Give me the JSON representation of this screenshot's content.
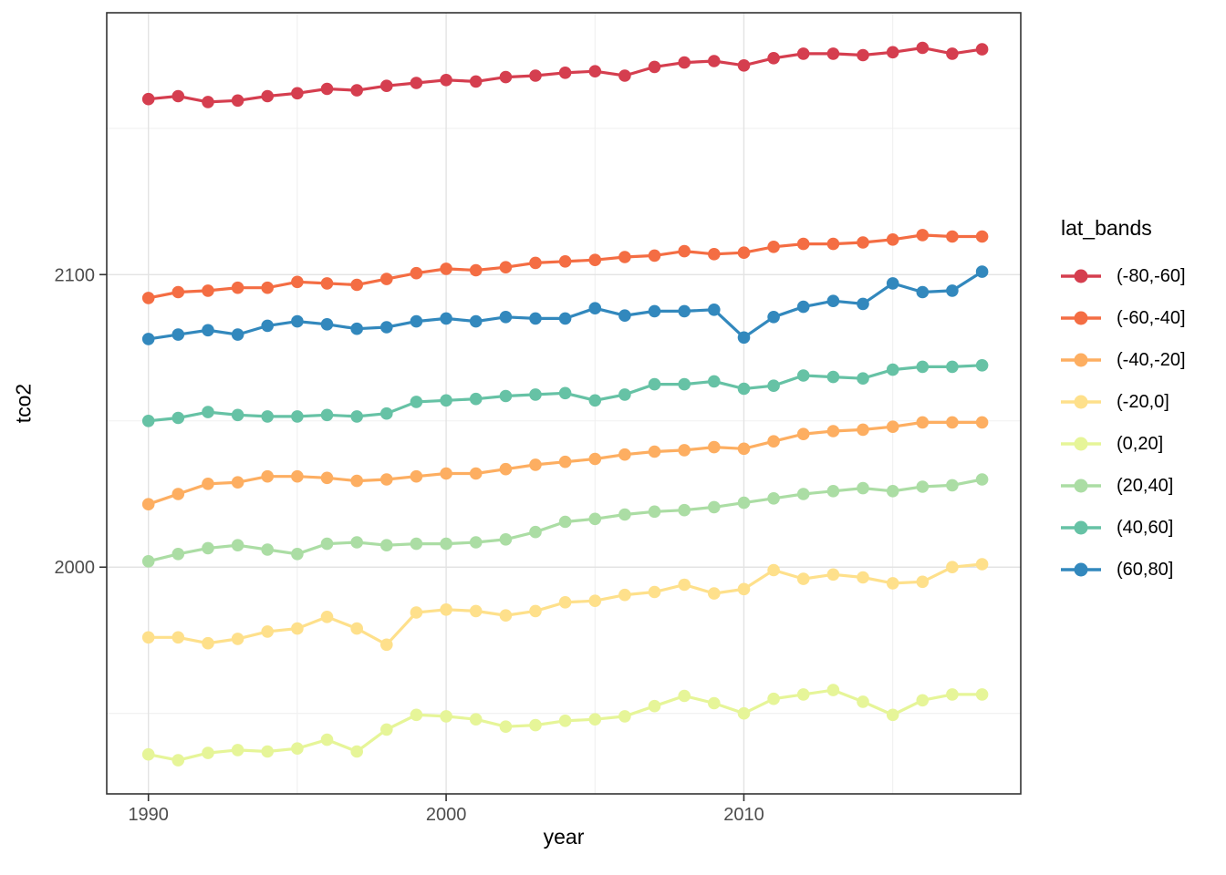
{
  "chart_data": {
    "type": "line",
    "title": "",
    "xlabel": "year",
    "ylabel": "tco2",
    "legend_title": "lat_bands",
    "legend_position": "right",
    "grid": true,
    "xlim": [
      1988.6,
      2019.3
    ],
    "ylim": [
      1922.5,
      2189.5
    ],
    "x_ticks": [
      1990,
      2000,
      2010
    ],
    "x_minor_ticks": [
      1995,
      2005,
      2015
    ],
    "y_ticks": [
      2000,
      2100
    ],
    "y_minor_ticks": [
      1950,
      2050,
      2150
    ],
    "x": [
      1990,
      1991,
      1992,
      1993,
      1994,
      1995,
      1996,
      1997,
      1998,
      1999,
      2000,
      2001,
      2002,
      2003,
      2004,
      2005,
      2006,
      2007,
      2008,
      2009,
      2010,
      2011,
      2012,
      2013,
      2014,
      2015,
      2016,
      2017,
      2018
    ],
    "series": [
      {
        "name": "(-80,-60]",
        "color": "#d53e4f",
        "values": [
          2160,
          2161,
          2159,
          2159.5,
          2161,
          2162,
          2163.5,
          2163,
          2164.5,
          2165.5,
          2166.5,
          2166,
          2167.5,
          2168,
          2169,
          2169.5,
          2168,
          2171,
          2172.5,
          2173,
          2171.5,
          2174,
          2175.5,
          2175.5,
          2175,
          2176,
          2177.5,
          2175.5,
          2177
        ]
      },
      {
        "name": "(-60,-40]",
        "color": "#f46d43",
        "values": [
          2092,
          2094,
          2094.5,
          2095.5,
          2095.5,
          2097.5,
          2097,
          2096.5,
          2098.5,
          2100.5,
          2102,
          2101.5,
          2102.5,
          2104,
          2104.5,
          2105,
          2106,
          2106.5,
          2108,
          2107,
          2107.5,
          2109.5,
          2110.5,
          2110.5,
          2111,
          2112,
          2113.5,
          2113,
          2113
        ]
      },
      {
        "name": "(-40,-20]",
        "color": "#fdae61",
        "values": [
          2021.5,
          2025,
          2028.5,
          2029,
          2031,
          2031,
          2030.5,
          2029.5,
          2030,
          2031,
          2032,
          2032,
          2033.5,
          2035,
          2036,
          2037,
          2038.5,
          2039.5,
          2040,
          2041,
          2040.5,
          2043,
          2045.5,
          2046.5,
          2047,
          2048,
          2049.5,
          2049.5,
          2049.5
        ]
      },
      {
        "name": "(-20,0]",
        "color": "#fee08b",
        "values": [
          1976,
          1976,
          1974,
          1975.5,
          1978,
          1979,
          1983,
          1979,
          1973.5,
          1984.5,
          1985.5,
          1985,
          1983.5,
          1985,
          1988,
          1988.5,
          1990.5,
          1991.5,
          1994,
          1991,
          1992.5,
          1999,
          1996,
          1997.5,
          1996.5,
          1994.5,
          1995,
          2000,
          2001
        ]
      },
      {
        "name": "(0,20]",
        "color": "#e6f598",
        "values": [
          1936,
          1934,
          1936.5,
          1937.5,
          1937,
          1938,
          1941,
          1937,
          1944.5,
          1949.5,
          1949,
          1948,
          1945.5,
          1946,
          1947.5,
          1948,
          1949,
          1952.5,
          1956,
          1953.5,
          1950,
          1955,
          1956.5,
          1958,
          1954,
          1949.5,
          1954.5,
          1956.5,
          1956.5
        ]
      },
      {
        "name": "(20,40]",
        "color": "#abdda4",
        "values": [
          2002,
          2004.5,
          2006.5,
          2007.5,
          2006,
          2004.5,
          2008,
          2008.5,
          2007.5,
          2008,
          2008,
          2008.5,
          2009.5,
          2012,
          2015.5,
          2016.5,
          2018,
          2019,
          2019.5,
          2020.5,
          2022,
          2023.5,
          2025,
          2026,
          2027,
          2026,
          2027.5,
          2028,
          2030
        ]
      },
      {
        "name": "(40,60]",
        "color": "#66c2a5",
        "values": [
          2050,
          2051,
          2053,
          2052,
          2051.5,
          2051.5,
          2052,
          2051.5,
          2052.5,
          2056.5,
          2057,
          2057.5,
          2058.5,
          2059,
          2059.5,
          2057,
          2059,
          2062.5,
          2062.5,
          2063.5,
          2061,
          2062,
          2065.5,
          2065,
          2064.5,
          2067.5,
          2068.5,
          2068.5,
          2069
        ]
      },
      {
        "name": "(60,80]",
        "color": "#3288bd",
        "values": [
          2078,
          2079.5,
          2081,
          2079.5,
          2082.5,
          2084,
          2083,
          2081.5,
          2082,
          2084,
          2085,
          2084,
          2085.5,
          2085,
          2085,
          2088.5,
          2086,
          2087.5,
          2087.5,
          2088,
          2078.5,
          2085.5,
          2089,
          2091,
          2090,
          2097,
          2094,
          2094.5,
          2101
        ]
      }
    ],
    "style": {
      "panel_border_color": "#333333",
      "grid_major_color": "#e3e3e3",
      "grid_minor_color": "#f0f0f0",
      "tick_label_color": "#4d4d4d",
      "axis_title_color": "#000000"
    }
  }
}
